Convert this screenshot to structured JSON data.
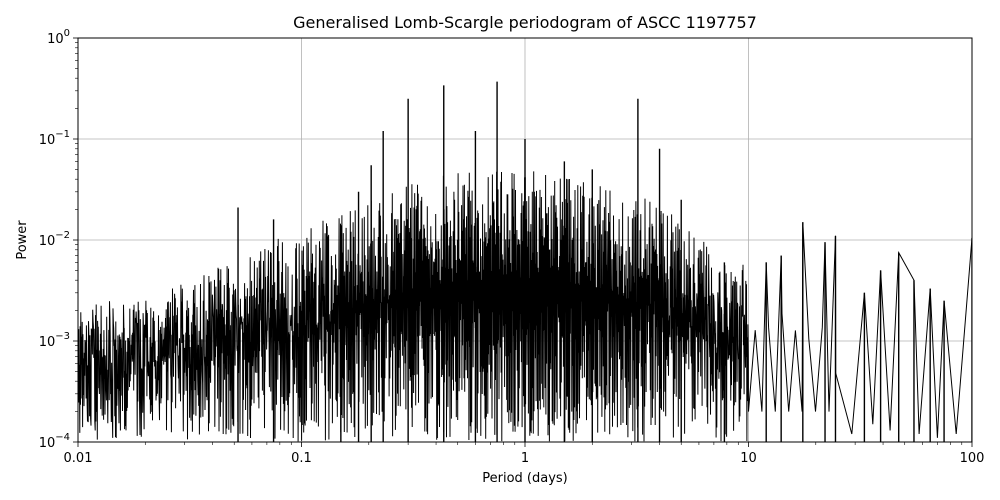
{
  "chart_data": {
    "type": "line",
    "title": "Generalised Lomb-Scargle periodogram of ASCC 1197757",
    "xlabel": "Period (days)",
    "ylabel": "Power",
    "xscale": "log",
    "yscale": "log",
    "xlim": [
      0.01,
      100
    ],
    "ylim": [
      0.0001,
      1
    ],
    "grid": true,
    "line_color": "#000000",
    "x_ticks": [
      {
        "value": 0.01,
        "label": "0.01"
      },
      {
        "value": 0.1,
        "label": "0.1"
      },
      {
        "value": 1,
        "label": "1"
      },
      {
        "value": 10,
        "label": "10"
      },
      {
        "value": 100,
        "label": "100"
      }
    ],
    "y_ticks": [
      {
        "value": 0.0001,
        "base": "10",
        "exp": "−4"
      },
      {
        "value": 0.001,
        "base": "10",
        "exp": "−3"
      },
      {
        "value": 0.01,
        "base": "10",
        "exp": "−2"
      },
      {
        "value": 0.1,
        "base": "10",
        "exp": "−1"
      },
      {
        "value": 1,
        "base": "10",
        "exp": "0"
      }
    ],
    "peaks": [
      {
        "x": 0.052,
        "y": 0.021
      },
      {
        "x": 0.075,
        "y": 0.016
      },
      {
        "x": 0.15,
        "y": 0.014
      },
      {
        "x": 0.18,
        "y": 0.03
      },
      {
        "x": 0.205,
        "y": 0.055
      },
      {
        "x": 0.232,
        "y": 0.12
      },
      {
        "x": 0.3,
        "y": 0.25
      },
      {
        "x": 0.433,
        "y": 0.34
      },
      {
        "x": 0.6,
        "y": 0.12
      },
      {
        "x": 0.75,
        "y": 0.37
      },
      {
        "x": 1.0,
        "y": 0.1
      },
      {
        "x": 1.5,
        "y": 0.06
      },
      {
        "x": 2.0,
        "y": 0.05
      },
      {
        "x": 3.2,
        "y": 0.25
      },
      {
        "x": 4.0,
        "y": 0.08
      },
      {
        "x": 5.0,
        "y": 0.025
      },
      {
        "x": 7.8,
        "y": 0.006
      },
      {
        "x": 12,
        "y": 0.006
      },
      {
        "x": 14,
        "y": 0.007
      },
      {
        "x": 17.5,
        "y": 0.015
      },
      {
        "x": 22,
        "y": 0.0095
      },
      {
        "x": 24.5,
        "y": 0.011
      },
      {
        "x": 33,
        "y": 0.003
      },
      {
        "x": 39,
        "y": 0.005
      },
      {
        "x": 47,
        "y": 0.0075
      },
      {
        "x": 55,
        "y": 0.004
      },
      {
        "x": 65,
        "y": 0.0033
      },
      {
        "x": 75,
        "y": 0.0025
      },
      {
        "x": 100,
        "y": 0.0105
      }
    ],
    "envelope": [
      {
        "x": 0.01,
        "y": 0.0007
      },
      {
        "x": 0.02,
        "y": 0.0012
      },
      {
        "x": 0.03,
        "y": 0.0018
      },
      {
        "x": 0.05,
        "y": 0.003
      },
      {
        "x": 0.07,
        "y": 0.0045
      },
      {
        "x": 0.1,
        "y": 0.006
      },
      {
        "x": 0.2,
        "y": 0.012
      },
      {
        "x": 0.3,
        "y": 0.018
      },
      {
        "x": 0.5,
        "y": 0.022
      },
      {
        "x": 0.8,
        "y": 0.025
      },
      {
        "x": 1.5,
        "y": 0.02
      },
      {
        "x": 3,
        "y": 0.015
      },
      {
        "x": 5,
        "y": 0.008
      },
      {
        "x": 7,
        "y": 0.004
      },
      {
        "x": 10,
        "y": 0.003
      }
    ],
    "smooth_tail_troughs": [
      {
        "x": 29,
        "y": 0.00012
      },
      {
        "x": 36,
        "y": 0.00015
      },
      {
        "x": 43,
        "y": 0.00013
      },
      {
        "x": 58,
        "y": 0.00012
      },
      {
        "x": 70,
        "y": 0.00011
      },
      {
        "x": 85,
        "y": 0.00012
      }
    ]
  }
}
